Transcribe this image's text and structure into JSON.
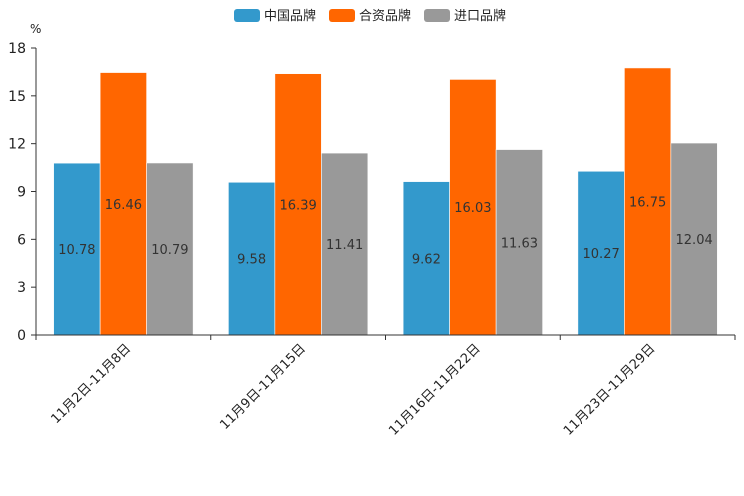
{
  "chart_data": {
    "type": "bar",
    "title": "",
    "ylabel": "%",
    "xlabel": "",
    "ylim": [
      0,
      18
    ],
    "yticks": [
      0,
      3,
      6,
      9,
      12,
      15,
      18
    ],
    "categories": [
      "11月2日-11月8日",
      "11月9日-11月15日",
      "11月16日-11月22日",
      "11月23日-11月29日"
    ],
    "legend_position": "top",
    "series": [
      {
        "name": "中国品牌",
        "color": "#3399CC",
        "values": [
          10.78,
          9.58,
          9.62,
          10.27
        ]
      },
      {
        "name": "合资品牌",
        "color": "#FF6600",
        "values": [
          16.46,
          16.39,
          16.03,
          16.75
        ]
      },
      {
        "name": "进口品牌",
        "color": "#999999",
        "values": [
          10.79,
          11.41,
          11.63,
          12.04
        ]
      }
    ]
  }
}
